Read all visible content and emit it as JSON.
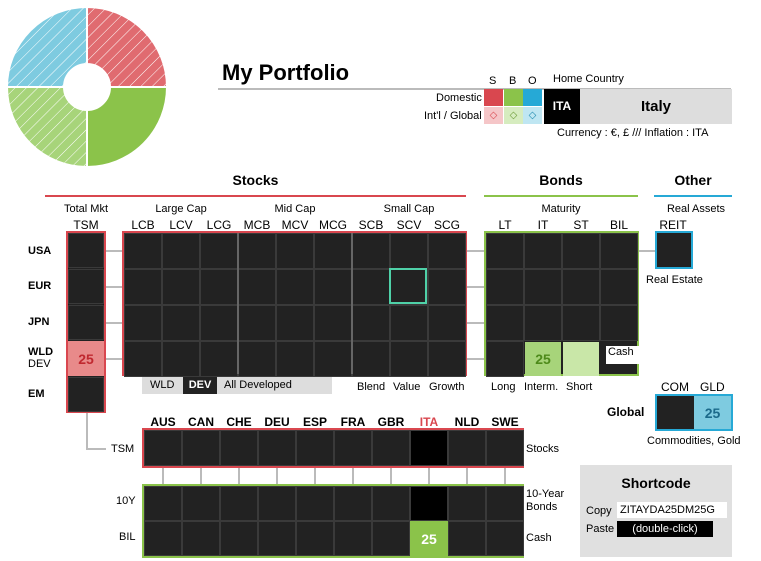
{
  "header": {
    "title": "My Portfolio",
    "home_country_label": "Home Country",
    "sbo": [
      "S",
      "B",
      "O"
    ],
    "domestic_label": "Domestic",
    "intl_label": "Int'l / Global",
    "country_code": "ITA",
    "country_name": "Italy",
    "currency_line": "Currency : €, £  ///  Inflation : ITA"
  },
  "sections": {
    "stocks": "Stocks",
    "bonds": "Bonds",
    "other": "Other"
  },
  "stocks": {
    "groups": [
      "Total Mkt",
      "Large Cap",
      "Mid Cap",
      "Small Cap"
    ],
    "columns": [
      "TSM",
      "LCB",
      "LCV",
      "LCG",
      "MCB",
      "MCV",
      "MCG",
      "SCB",
      "SCV",
      "SCG"
    ],
    "rows": [
      "USA",
      "EUR",
      "JPN",
      "WLD",
      "EM"
    ],
    "wld_sub": "DEV",
    "tsm_wld_value": "25",
    "region_tabs": [
      "WLD",
      "DEV",
      "All Developed"
    ],
    "style_labels": [
      "Blend",
      "Value",
      "Growth"
    ]
  },
  "bonds": {
    "group": "Maturity",
    "columns": [
      "LT",
      "IT",
      "ST",
      "BIL"
    ],
    "it_value": "25",
    "cash_label": "Cash",
    "bottom_labels": [
      "Long",
      "Interm.",
      "Short"
    ]
  },
  "other": {
    "group": "Real Assets",
    "reit": "REIT",
    "real_estate": "Real Estate",
    "com": "COM",
    "gld": "GLD",
    "global_label": "Global",
    "gld_value": "25",
    "commodities_label": "Commodities, Gold"
  },
  "countries": {
    "columns": [
      "AUS",
      "CAN",
      "CHE",
      "DEU",
      "ESP",
      "FRA",
      "GBR",
      "ITA",
      "NLD",
      "SWE"
    ],
    "highlight": "ITA",
    "tsm_label": "TSM",
    "stocks_label": "Stocks",
    "ten_y": "10Y",
    "ten_year_label_1": "10-Year",
    "ten_year_label_2": "Bonds",
    "bil": "BIL",
    "cash_label": "Cash",
    "ita_bil_value": "25"
  },
  "shortcode": {
    "title": "Shortcode",
    "copy_label": "Copy",
    "copy_value": "ZITAYDA25DM25G",
    "paste_label": "Paste",
    "paste_button": "(double-click)"
  },
  "colors": {
    "stocks": "#d9474f",
    "bonds": "#8bc34a",
    "other": "#26a9d6",
    "cell": "#222222",
    "stock_fill": "#e88a8a",
    "bond_fill": "#8bc34a",
    "gold_fill": "#7ecbe0"
  }
}
